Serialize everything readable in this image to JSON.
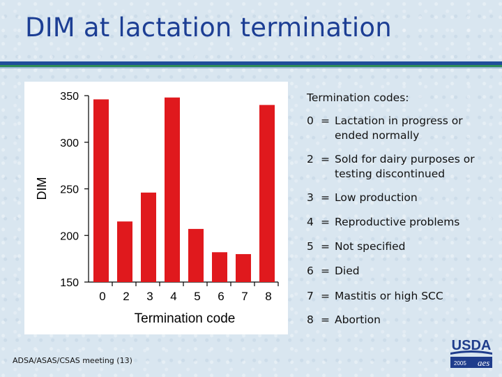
{
  "slide": {
    "title": "DIM at lactation termination",
    "footer": "ADSA/ASAS/CSAS meeting (13)",
    "logo": {
      "text": "USDA",
      "year": "2005",
      "sub": "aes"
    }
  },
  "legend": {
    "header": "Termination codes:",
    "items": [
      {
        "code": "0",
        "eq": "=",
        "desc": "Lactation in progress or ended normally"
      },
      {
        "code": "2",
        "eq": "=",
        "desc": "Sold for dairy purposes or testing discontinued"
      },
      {
        "code": "3",
        "eq": "=",
        "desc": "Low production"
      },
      {
        "code": "4",
        "eq": "=",
        "desc": "Reproductive problems"
      },
      {
        "code": "5",
        "eq": "=",
        "desc": "Not specified"
      },
      {
        "code": "6",
        "eq": "=",
        "desc": "Died"
      },
      {
        "code": "7",
        "eq": "=",
        "desc": "Mastitis or high SCC"
      },
      {
        "code": "8",
        "eq": "=",
        "desc": "Abortion"
      }
    ]
  },
  "chart_data": {
    "type": "bar",
    "categories": [
      "0",
      "2",
      "3",
      "4",
      "5",
      "6",
      "7",
      "8"
    ],
    "values": [
      346,
      215,
      246,
      348,
      207,
      182,
      180,
      340
    ],
    "xlabel": "Termination code",
    "ylabel": "DIM",
    "ylim": [
      150,
      350
    ],
    "yticks": [
      350,
      300,
      250,
      200,
      150
    ],
    "bar_color": "#e0191d",
    "grid": false
  }
}
